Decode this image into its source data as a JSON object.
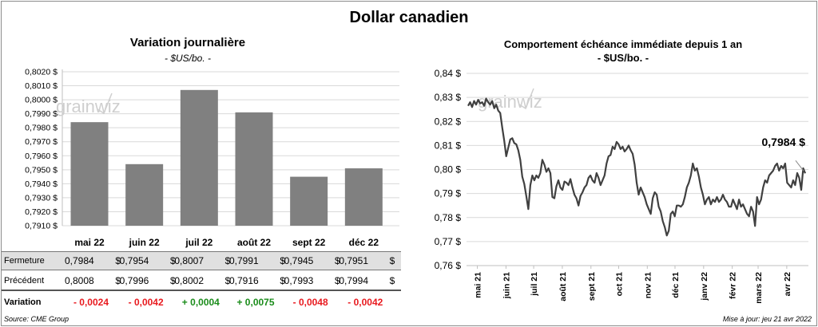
{
  "title": "Dollar canadien",
  "left": {
    "title": "Variation  journalière",
    "subtitle": "- $US/bo. -"
  },
  "right": {
    "title": "Comportement échéance immédiate depuis 1 an",
    "subtitle": "- $US/bo. -",
    "last_label": "0,7984 $"
  },
  "watermark": "grainwiz",
  "table": {
    "rows": [
      {
        "label": "Fermeture",
        "values": [
          "0,7984",
          "0,7954",
          "0,8007",
          "0,7991",
          "0,7945",
          "0,7951"
        ]
      },
      {
        "label": "Précédent",
        "values": [
          "0,8008",
          "0,7996",
          "0,8002",
          "0,7916",
          "0,7993",
          "0,7994"
        ]
      }
    ],
    "currency": "$",
    "variation_label": "Variation",
    "variations": [
      "- 0,0024",
      "- 0,0042",
      "+ 0,0004",
      "+ 0,0075",
      "- 0,0048",
      "- 0,0042"
    ]
  },
  "colors": {
    "bar": "#808080",
    "line": "#404040",
    "negative": "#e8191e",
    "positive": "#1a8c1a"
  },
  "footer": {
    "source": "Source: CME Group",
    "updated": "Mise à jour: jeu 21 avr 2022"
  },
  "chart_data": [
    {
      "type": "bar",
      "title": "Variation  journalière",
      "subtitle": "- $US/bo. -",
      "categories": [
        "mai 22",
        "juin 22",
        "juil 22",
        "août 22",
        "sept 22",
        "déc 22"
      ],
      "values": [
        0.7984,
        0.7954,
        0.8007,
        0.7991,
        0.7945,
        0.7951
      ],
      "ylim": [
        0.791,
        0.802
      ],
      "yticks": [
        "0,7910 $",
        "0,7920 $",
        "0,7930 $",
        "0,7940 $",
        "0,7950 $",
        "0,7960 $",
        "0,7970 $",
        "0,7980 $",
        "0,7990 $",
        "0,8000 $",
        "0,8010 $",
        "0,8020 $"
      ],
      "grid": true
    },
    {
      "type": "line",
      "title": "Comportement échéance immédiate depuis 1 an",
      "subtitle": "- $US/bo. -",
      "ylim": [
        0.76,
        0.84
      ],
      "yticks": [
        "0,76 $",
        "0,77 $",
        "0,78 $",
        "0,79 $",
        "0,80 $",
        "0,81 $",
        "0,82 $",
        "0,83 $",
        "0,84 $"
      ],
      "xticks": [
        "mai 21",
        "juin 21",
        "juil 21",
        "août 21",
        "sept 21",
        "oct 21",
        "nov 21",
        "déc 21",
        "janv 22",
        "févr 22",
        "mars 22",
        "avr 22"
      ],
      "grid": true,
      "x_start": "2021-04-21",
      "x_end": "2022-04-21",
      "series": [
        {
          "values": [
            0.8265,
            0.828,
            0.826,
            0.8285,
            0.827,
            0.829,
            0.8275,
            0.828,
            0.8265,
            0.8295,
            0.828,
            0.827,
            0.8285,
            0.8255,
            0.827,
            0.8245,
            0.8235,
            0.8175,
            0.812,
            0.8055,
            0.809,
            0.8125,
            0.813,
            0.811,
            0.8105,
            0.808,
            0.804,
            0.797,
            0.794,
            0.789,
            0.7835,
            0.7935,
            0.7975,
            0.7955,
            0.7975,
            0.7965,
            0.7985,
            0.804,
            0.802,
            0.799,
            0.8005,
            0.7985,
            0.7885,
            0.788,
            0.793,
            0.7955,
            0.7925,
            0.7915,
            0.795,
            0.7945,
            0.7935,
            0.796,
            0.7925,
            0.7895,
            0.788,
            0.785,
            0.789,
            0.7905,
            0.7925,
            0.7935,
            0.7965,
            0.7975,
            0.7955,
            0.7945,
            0.7985,
            0.7965,
            0.7935,
            0.7955,
            0.7975,
            0.8025,
            0.8055,
            0.806,
            0.8095,
            0.8085,
            0.8115,
            0.8105,
            0.8085,
            0.8095,
            0.8075,
            0.8085,
            0.81,
            0.808,
            0.8065,
            0.802,
            0.7945,
            0.7895,
            0.7925,
            0.7905,
            0.7885,
            0.7855,
            0.7835,
            0.7815,
            0.788,
            0.7905,
            0.7895,
            0.7845,
            0.7825,
            0.7785,
            0.776,
            0.7725,
            0.7745,
            0.7815,
            0.7825,
            0.7805,
            0.785,
            0.785,
            0.7845,
            0.7855,
            0.7885,
            0.7925,
            0.7945,
            0.7975,
            0.8025,
            0.7995,
            0.8005,
            0.797,
            0.7925,
            0.7895,
            0.7855,
            0.7875,
            0.7885,
            0.7855,
            0.7875,
            0.7865,
            0.7885,
            0.7865,
            0.7875,
            0.7895,
            0.7875,
            0.7865,
            0.7845,
            0.7845,
            0.7875,
            0.7855,
            0.7835,
            0.7875,
            0.7845,
            0.7855,
            0.7835,
            0.7815,
            0.7805,
            0.7845,
            0.7825,
            0.7765,
            0.7885,
            0.7855,
            0.7875,
            0.7925,
            0.7955,
            0.7945,
            0.7975,
            0.7985,
            0.7995,
            0.8015,
            0.8025,
            0.7995,
            0.8015,
            0.8005,
            0.8025,
            0.7945,
            0.7935,
            0.7925,
            0.7955,
            0.7935,
            0.7985,
            0.7965,
            0.7915,
            0.8005,
            0.7984
          ]
        }
      ]
    }
  ]
}
